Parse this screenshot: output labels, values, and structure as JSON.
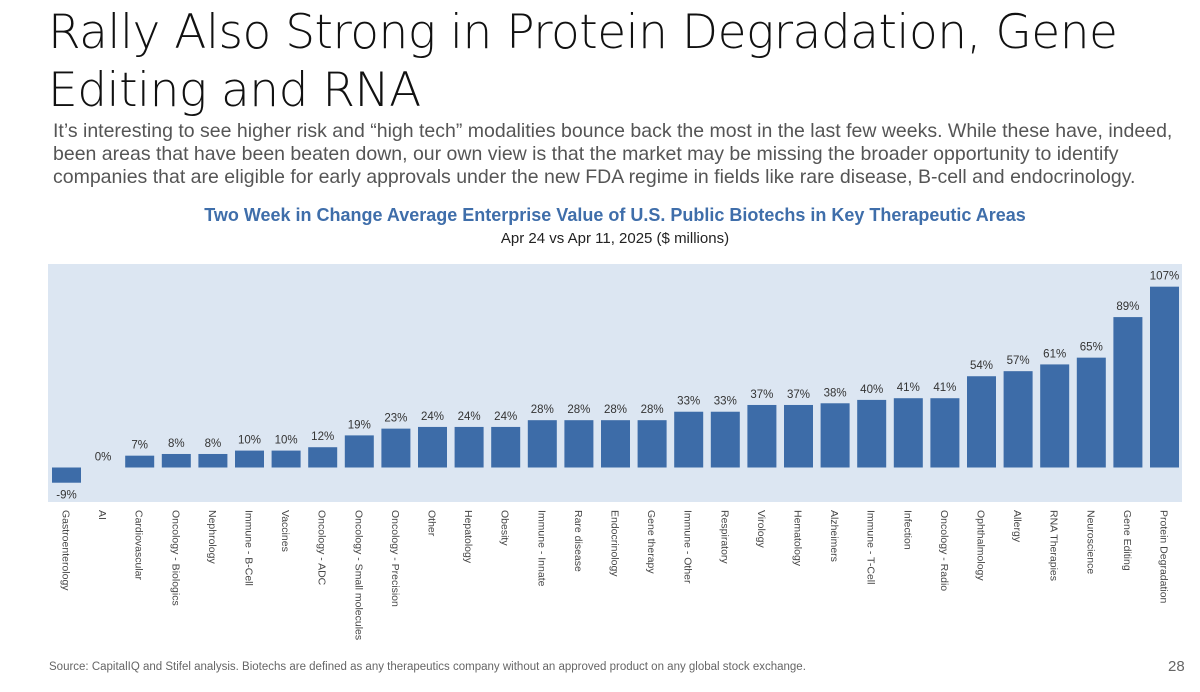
{
  "slide": {
    "title": "Rally Also Strong in Protein Degradation, Gene Editing and RNA",
    "subtitle": "It’s interesting to see higher risk and “high tech” modalities bounce back the most in the last few weeks. While these have, indeed, been areas that have been beaten down, our own view is that the market may be missing the broader opportunity to identify companies that are eligible for early approvals under the new FDA regime in fields like rare disease, B-cell and endocrinology.",
    "source": "Source: CapitalIQ and Stifel analysis. Biotechs are defined as any therapeutics company without an approved product on any global stock exchange.",
    "page_number": "28"
  },
  "colors": {
    "bar": "#3d6ca8",
    "plot_background": "#dce6f2",
    "chart_title": "#3f6eaa"
  },
  "chart_data": {
    "type": "bar",
    "title": "Two Week in Change Average Enterprise Value of U.S. Public Biotechs in Key Therapeutic Areas",
    "subtitle": "Apr 24 vs Apr 11, 2025 ($ millions)",
    "xlabel": "",
    "ylabel": "",
    "ylim": [
      -9,
      107
    ],
    "grid": false,
    "categories": [
      "Gastroenterology",
      "AI",
      "Cardiovascular",
      "Oncology - Biologics",
      "Nephrology",
      "Immune - B-Cell",
      "Vaccines",
      "Oncology - ADC",
      "Oncology - Small molecules",
      "Oncology - Precision",
      "Other",
      "Hepatology",
      "Obesity",
      "Immune - Innate",
      "Rare disease",
      "Endocrinology",
      "Gene therapy",
      "Immune - Other",
      "Respiratory",
      "Virology",
      "Hematology",
      "Alzheimers",
      "Immune - T-Cell",
      "Infection",
      "Oncology - Radio",
      "Ophthalmology",
      "Allergy",
      "RNA Therapies",
      "Neuroscience",
      "Gene Editing",
      "Protein Degradation"
    ],
    "values": [
      -9,
      0,
      7,
      8,
      8,
      10,
      10,
      12,
      19,
      23,
      24,
      24,
      24,
      28,
      28,
      28,
      28,
      33,
      33,
      37,
      37,
      38,
      40,
      41,
      41,
      54,
      57,
      61,
      65,
      89,
      107
    ],
    "labels": [
      "-9%",
      "0%",
      "7%",
      "8%",
      "8%",
      "10%",
      "10%",
      "12%",
      "19%",
      "23%",
      "24%",
      "24%",
      "24%",
      "28%",
      "28%",
      "28%",
      "28%",
      "33%",
      "33%",
      "37%",
      "37%",
      "38%",
      "40%",
      "41%",
      "41%",
      "54%",
      "57%",
      "61%",
      "65%",
      "89%",
      "107%"
    ]
  }
}
